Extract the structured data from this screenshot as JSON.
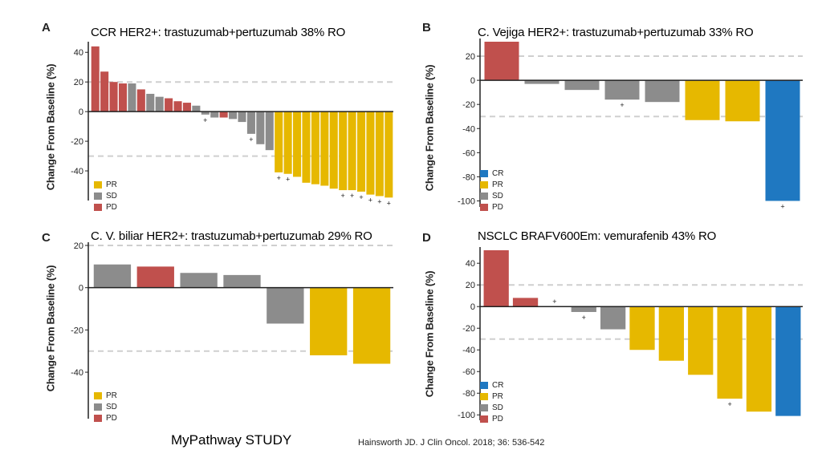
{
  "colors": {
    "PR": "#e6b800",
    "SD": "#8c8c8c",
    "PD": "#c0504d",
    "CR": "#1f78c1"
  },
  "footer": {
    "study": "MyPathway STUDY",
    "citation": "Hainsworth JD. J Clin Oncol. 2018; 36: 536-542"
  },
  "chart_data": [
    {
      "panel": "A",
      "type": "bar",
      "title": "CCR HER2+: trastuzumab+pertuzumab 38% RO",
      "ylabel": "Change From Baseline (%)",
      "ylim": [
        -60,
        45
      ],
      "yticks": [
        40,
        20,
        0,
        -20,
        -40
      ],
      "ref_lines": [
        20,
        -30
      ],
      "legend": [
        "PR",
        "SD",
        "PD"
      ],
      "values": [
        44,
        27,
        20,
        19,
        19,
        15,
        12,
        10,
        9,
        7,
        6,
        4,
        -2,
        -4,
        -4,
        -5,
        -7,
        -15,
        -22,
        -26,
        -41,
        -42,
        -44,
        -48,
        -49,
        -50,
        -52,
        -53,
        -53,
        -54,
        -56,
        -57,
        -58
      ],
      "classes": [
        "PD",
        "PD",
        "PD",
        "PD",
        "SD",
        "PD",
        "SD",
        "SD",
        "PD",
        "PD",
        "PD",
        "SD",
        "SD",
        "SD",
        "PD",
        "SD",
        "SD",
        "SD",
        "SD",
        "SD",
        "PR",
        "PR",
        "PR",
        "PR",
        "PR",
        "PR",
        "PR",
        "PR",
        "PR",
        "PR",
        "PR",
        "PR",
        "PR"
      ],
      "markers": [
        12,
        17,
        20,
        21,
        27,
        28,
        29,
        30,
        31,
        32
      ],
      "marker_symbol": "+"
    },
    {
      "panel": "B",
      "type": "bar",
      "title": "C. Vejiga HER2+: trastuzumab+pertuzumab 33% RO",
      "ylabel": "Change From Baseline (%)",
      "ylim": [
        -105,
        32
      ],
      "yticks": [
        20,
        0,
        -20,
        -40,
        -60,
        -80,
        -100
      ],
      "ref_lines": [
        20,
        -30
      ],
      "legend": [
        "CR",
        "PR",
        "SD",
        "PD"
      ],
      "values": [
        32,
        -3,
        -8,
        -16,
        -18,
        -33,
        -34,
        -100
      ],
      "classes": [
        "PD",
        "SD",
        "SD",
        "SD",
        "SD",
        "PR",
        "PR",
        "CR"
      ],
      "markers": [
        3,
        7
      ],
      "marker_symbol": "+"
    },
    {
      "panel": "C",
      "type": "bar",
      "title": "C. V. biliar HER2+: trastuzumab+pertuzumab 29% RO",
      "ylabel": "Change From Baseline (%)",
      "ylim": [
        -62,
        20
      ],
      "yticks": [
        20,
        0,
        -20,
        -40
      ],
      "ref_lines": [
        20,
        -30
      ],
      "legend": [
        "PR",
        "SD",
        "PD"
      ],
      "values": [
        11,
        10,
        7,
        6,
        -17,
        -32,
        -36
      ],
      "classes": [
        "SD",
        "PD",
        "SD",
        "SD",
        "SD",
        "PR",
        "PR"
      ],
      "markers": [],
      "marker_symbol": "+"
    },
    {
      "panel": "D",
      "type": "bar",
      "title": "NSCLC BRAFV600Em: vemurafenib 43% RO",
      "ylabel": "Change From Baseline (%)",
      "ylim": [
        -105,
        52
      ],
      "yticks": [
        40,
        20,
        0,
        -20,
        -40,
        -60,
        -80,
        -100
      ],
      "ref_lines": [
        20,
        -30
      ],
      "legend": [
        "CR",
        "PR",
        "SD",
        "PD"
      ],
      "values": [
        52,
        8,
        0,
        -5,
        -21,
        -40,
        -50,
        -63,
        -85,
        -97,
        -101
      ],
      "classes": [
        "PD",
        "PD",
        "SD",
        "SD",
        "SD",
        "PR",
        "PR",
        "PR",
        "PR",
        "PR",
        "CR"
      ],
      "markers": [
        2,
        3,
        8
      ],
      "marker_symbol": "+"
    }
  ]
}
